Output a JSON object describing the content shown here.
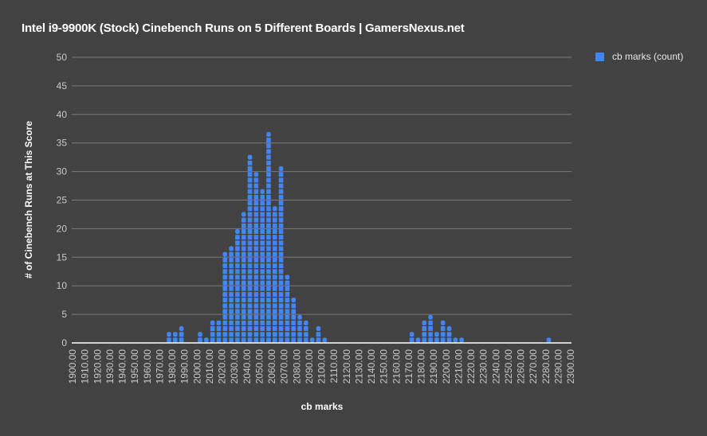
{
  "chart_data": {
    "type": "bar",
    "title": "Intel i9-9900K (Stock) Cinebench Runs on 5 Different Boards | GamersNexus.net",
    "xlabel": "cb marks",
    "ylabel": "# of Cinebench Runs at This Score",
    "legend": [
      {
        "label": "cb marks (count)",
        "color": "#4285f4"
      }
    ],
    "legend_position": "right",
    "grid": true,
    "ylim": [
      0,
      50
    ],
    "yticks": [
      0,
      5,
      10,
      15,
      20,
      25,
      30,
      35,
      40,
      45,
      50
    ],
    "xlim": [
      1900,
      2300
    ],
    "xtick_step": 10,
    "xtick_format": "0.00",
    "bin_width": 5,
    "bins": [
      1975,
      1980,
      1985,
      2000,
      2005,
      2010,
      2015,
      2020,
      2025,
      2030,
      2035,
      2040,
      2045,
      2050,
      2055,
      2060,
      2065,
      2070,
      2075,
      2080,
      2085,
      2090,
      2095,
      2100,
      2170,
      2175,
      2180,
      2185,
      2190,
      2195,
      2200,
      2205,
      2210,
      2280
    ],
    "series": [
      {
        "name": "cb marks (count)",
        "values": [
          2,
          2,
          3,
          2,
          1,
          4,
          4,
          16,
          17,
          20,
          23,
          33,
          30,
          27,
          37,
          24,
          31,
          12,
          8,
          5,
          4,
          1,
          3,
          1,
          2,
          1,
          4,
          5,
          2,
          4,
          3,
          1,
          1,
          1
        ]
      }
    ]
  },
  "colors": {
    "background": "#424242",
    "bar": "#4285f4",
    "grid": "#7a7a7a",
    "axis": "#ffffff",
    "tick_text": "#c8c8c8"
  }
}
